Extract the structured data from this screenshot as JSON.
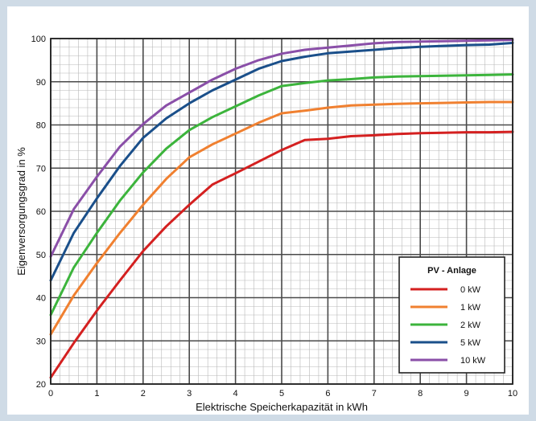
{
  "chart_data": {
    "type": "line",
    "title": "",
    "xlabel": "Elektrische Speicherkapazität in kWh",
    "ylabel": "Eigenversorgungsgrad in %",
    "xlim": [
      0,
      10
    ],
    "ylim": [
      20,
      100
    ],
    "x_ticks": [
      0,
      1,
      2,
      3,
      4,
      5,
      6,
      7,
      8,
      9,
      10
    ],
    "y_ticks": [
      20,
      30,
      40,
      50,
      60,
      70,
      80,
      90,
      100
    ],
    "grid": true,
    "legend": {
      "title": "PV - Anlage",
      "placement": "bottom-right"
    },
    "series": [
      {
        "name": "0 kW",
        "color": "#d42020",
        "x": [
          0,
          0.5,
          1,
          1.5,
          2,
          2.5,
          3,
          3.5,
          4,
          4.5,
          5,
          5.5,
          6,
          6.5,
          7,
          7.5,
          8,
          8.5,
          9,
          9.5,
          10
        ],
        "y": [
          21.5,
          29.5,
          37,
          44,
          50.8,
          56.5,
          61.5,
          66.2,
          68.8,
          71.5,
          74.2,
          76.5,
          76.8,
          77.4,
          77.6,
          77.9,
          78.1,
          78.2,
          78.3,
          78.3,
          78.4
        ]
      },
      {
        "name": "1 kW",
        "color": "#f08030",
        "x": [
          0,
          0.5,
          1,
          1.5,
          2,
          2.5,
          3,
          3.5,
          4,
          4.5,
          5,
          5.5,
          6,
          6.5,
          7,
          7.5,
          8,
          8.5,
          9,
          9.5,
          10
        ],
        "y": [
          31.5,
          40.5,
          48,
          55,
          61.5,
          67.5,
          72.5,
          75.5,
          78,
          80.5,
          82.7,
          83.3,
          84,
          84.5,
          84.7,
          84.9,
          85,
          85.1,
          85.2,
          85.3,
          85.3
        ]
      },
      {
        "name": "2 kW",
        "color": "#3cb43c",
        "x": [
          0,
          0.5,
          1,
          1.5,
          2,
          2.5,
          3,
          3.5,
          4,
          4.5,
          5,
          5.5,
          6,
          6.5,
          7,
          7.5,
          8,
          8.5,
          9,
          9.5,
          10
        ],
        "y": [
          36,
          47,
          55,
          62.5,
          69,
          74.5,
          78.8,
          81.8,
          84.3,
          86.8,
          89,
          89.7,
          90.3,
          90.6,
          91,
          91.2,
          91.3,
          91.4,
          91.5,
          91.6,
          91.7
        ]
      },
      {
        "name": "5 kW",
        "color": "#1a4f8a",
        "x": [
          0,
          0.5,
          1,
          1.5,
          2,
          2.5,
          3,
          3.5,
          4,
          4.5,
          5,
          5.5,
          6,
          6.5,
          7,
          7.5,
          8,
          8.5,
          9,
          9.5,
          10
        ],
        "y": [
          44,
          55,
          63,
          70.5,
          77,
          81.5,
          85,
          88,
          90.5,
          93,
          94.8,
          95.8,
          96.6,
          97,
          97.4,
          97.8,
          98.1,
          98.3,
          98.5,
          98.6,
          99
        ]
      },
      {
        "name": "10 kW",
        "color": "#8a4fa8",
        "x": [
          0,
          0.5,
          1,
          1.5,
          2,
          2.5,
          3,
          3.5,
          4,
          4.5,
          5,
          5.5,
          6,
          6.5,
          7,
          7.5,
          8,
          8.5,
          9,
          9.5,
          10
        ],
        "y": [
          49.5,
          60.5,
          68,
          75,
          80.2,
          84.5,
          87.5,
          90.5,
          93,
          95,
          96.5,
          97.4,
          97.9,
          98.4,
          98.9,
          99.2,
          99.3,
          99.4,
          99.5,
          99.6,
          99.7
        ]
      }
    ]
  }
}
